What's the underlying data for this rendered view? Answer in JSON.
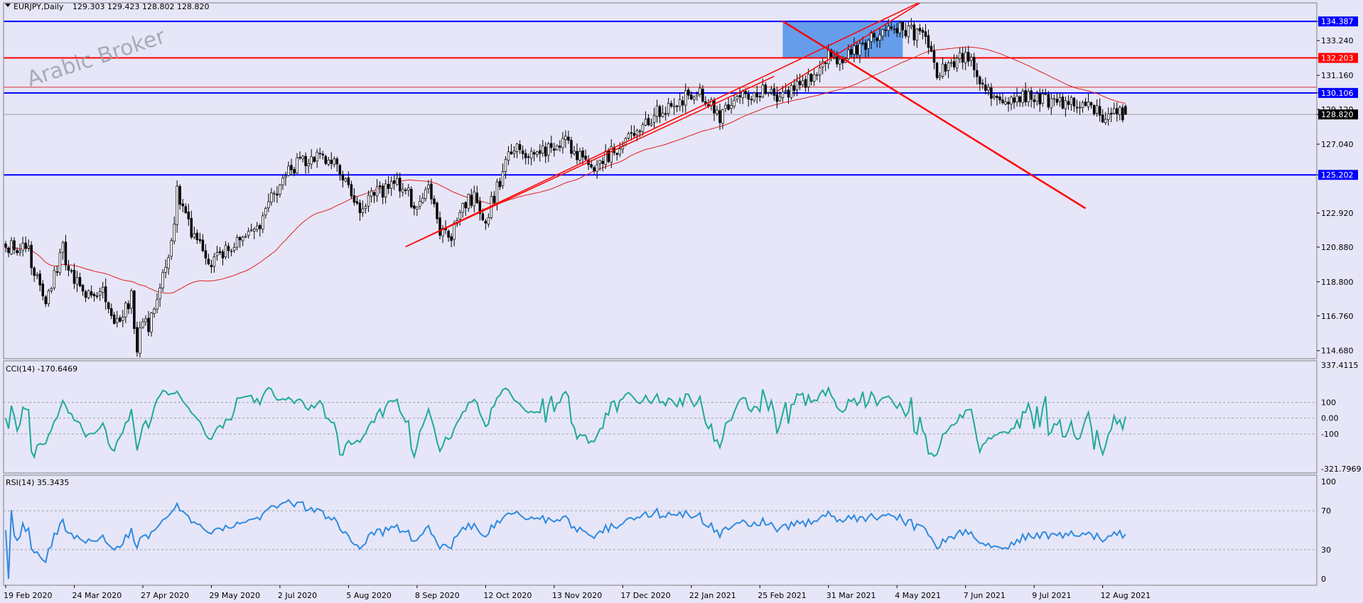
{
  "colors": {
    "background": "#e6e6f8",
    "frame": "#7f7f7f",
    "candle": "#000000",
    "ma": "#e02020",
    "trend": "#ff0000",
    "hline_blue": "#0000ff",
    "hline_red": "#ff0000",
    "zone": "#4f8fe8",
    "cci": "#20a89a",
    "rsi": "#2f8ae0",
    "price_tag_current": "#000000",
    "watermark": "#9a9aa8"
  },
  "header": {
    "symbol": "EURJPY,Daily",
    "ohlc": "129.303 129.423 128.802 128.820"
  },
  "watermark": "Arabic Broker",
  "price_axis": {
    "ticks": [
      "134.387",
      "133.240",
      "132.203",
      "131.160",
      "130.106",
      "129.120",
      "128.820",
      "127.040",
      "125.202",
      "122.920",
      "120.880",
      "118.800",
      "116.760",
      "114.680"
    ],
    "scale_min": 114.2,
    "scale_max": 135.5
  },
  "price_tags": [
    {
      "label": "134.387",
      "value": 134.387,
      "color": "#0000ff"
    },
    {
      "label": "132.203",
      "value": 132.203,
      "color": "#ff0000"
    },
    {
      "label": "130.106",
      "value": 130.106,
      "color": "#0000ff"
    },
    {
      "label": "128.820",
      "value": 128.82,
      "color": "#000000"
    },
    {
      "label": "125.202",
      "value": 125.202,
      "color": "#0000ff"
    }
  ],
  "levels": [
    {
      "value": 134.387,
      "color": "#0000ff",
      "width": 2
    },
    {
      "value": 132.203,
      "color": "#ff0000",
      "width": 2
    },
    {
      "value": 130.45,
      "color": "#e03030",
      "width": 1
    },
    {
      "value": 130.106,
      "color": "#0000ff",
      "width": 2
    },
    {
      "value": 125.202,
      "color": "#0000ff",
      "width": 2
    },
    {
      "value": 128.82,
      "color": "#a0a0a0",
      "width": 1
    }
  ],
  "zone": {
    "x_from": 272,
    "x_to": 314,
    "price_top": 134.387,
    "price_bottom": 132.203
  },
  "trendlines": [
    {
      "x1": 140,
      "p1": 120.9,
      "x2": 322,
      "p2": 135.7,
      "w": 1.5
    },
    {
      "x1": 140,
      "p1": 120.9,
      "x2": 269,
      "p2": 131.1,
      "w": 1.5
    },
    {
      "x1": 270,
      "p1": 130.2,
      "x2": 322,
      "p2": 135.7,
      "w": 1.5
    },
    {
      "x1": 272,
      "p1": 134.4,
      "x2": 378,
      "p2": 123.2,
      "w": 2.5
    }
  ],
  "x_axis": {
    "labels": [
      "19 Feb 2020",
      "24 Mar 2020",
      "27 Apr 2020",
      "29 May 2020",
      "2 Jul 2020",
      "5 Aug 2020",
      "8 Sep 2020",
      "12 Oct 2020",
      "13 Nov 2020",
      "17 Dec 2020",
      "22 Jan 2021",
      "25 Feb 2021",
      "31 Mar 2021",
      "4 May 2021",
      "7 Jun 2021",
      "9 Jul 2021",
      "12 Aug 2021"
    ],
    "bar_index": [
      0,
      24,
      48,
      72,
      96,
      120,
      144,
      168,
      192,
      216,
      240,
      264,
      288,
      312,
      336,
      360,
      384
    ]
  },
  "cci_pane": {
    "title": "CCI(14) -170.6469",
    "ticks": [
      "337.4115",
      "100",
      "0.00",
      "-100",
      "-321.7969"
    ],
    "min": -321.7969,
    "max": 337.4115,
    "levels": [
      100,
      0,
      -100
    ]
  },
  "rsi_pane": {
    "title": "RSI(14) 35.3435",
    "ticks": [
      "100",
      "70",
      "30",
      "0"
    ],
    "levels": [
      70,
      30
    ]
  },
  "chart_data": {
    "type": "candlestick",
    "title": "EURJPY,Daily",
    "ylim": [
      114.2,
      135.5
    ],
    "anchor_bars": [
      0,
      8,
      14,
      20,
      22,
      26,
      30,
      34,
      36,
      38,
      40,
      44,
      46,
      48,
      50,
      54,
      56,
      58,
      60,
      66,
      72,
      80,
      88,
      94,
      100,
      106,
      110,
      116,
      120,
      124,
      130,
      136,
      140,
      144,
      148,
      152,
      156,
      160,
      164,
      168,
      172,
      176,
      180,
      186,
      192,
      196,
      200,
      206,
      212,
      216,
      222,
      226,
      232,
      238,
      244,
      250,
      256,
      262,
      266,
      270,
      276,
      282,
      288,
      294,
      300,
      306,
      312,
      318,
      322,
      326,
      332,
      336,
      340,
      344,
      350,
      356,
      362,
      368,
      374,
      380,
      384
    ],
    "anchor_close": [
      121.0,
      120.6,
      117.3,
      120.9,
      119.5,
      118.7,
      117.7,
      118.1,
      117.0,
      116.6,
      116.5,
      118.0,
      114.8,
      116.4,
      116.0,
      118.3,
      119.5,
      121.2,
      124.1,
      121.3,
      120.0,
      120.9,
      121.8,
      124.1,
      125.6,
      126.2,
      126.5,
      125.9,
      124.6,
      123.2,
      124.1,
      124.7,
      124.3,
      123.0,
      124.2,
      122.0,
      121.4,
      123.4,
      123.8,
      122.6,
      124.4,
      126.5,
      126.7,
      126.4,
      126.8,
      127.1,
      126.3,
      125.5,
      126.6,
      127.1,
      127.8,
      128.7,
      129.4,
      129.9,
      130.0,
      128.7,
      129.8,
      130.1,
      130.2,
      130.0,
      130.4,
      131.1,
      132.3,
      132.2,
      132.9,
      133.7,
      134.1,
      133.7,
      133.2,
      131.2,
      131.8,
      132.5,
      131.4,
      130.0,
      129.6,
      130.0,
      129.8,
      129.6,
      129.6,
      129.2,
      128.8
    ],
    "ma_period": 50,
    "levels": [
      134.387,
      132.203,
      130.106,
      125.202
    ],
    "last": {
      "open": 129.303,
      "high": 129.423,
      "low": 128.802,
      "close": 128.82
    }
  }
}
